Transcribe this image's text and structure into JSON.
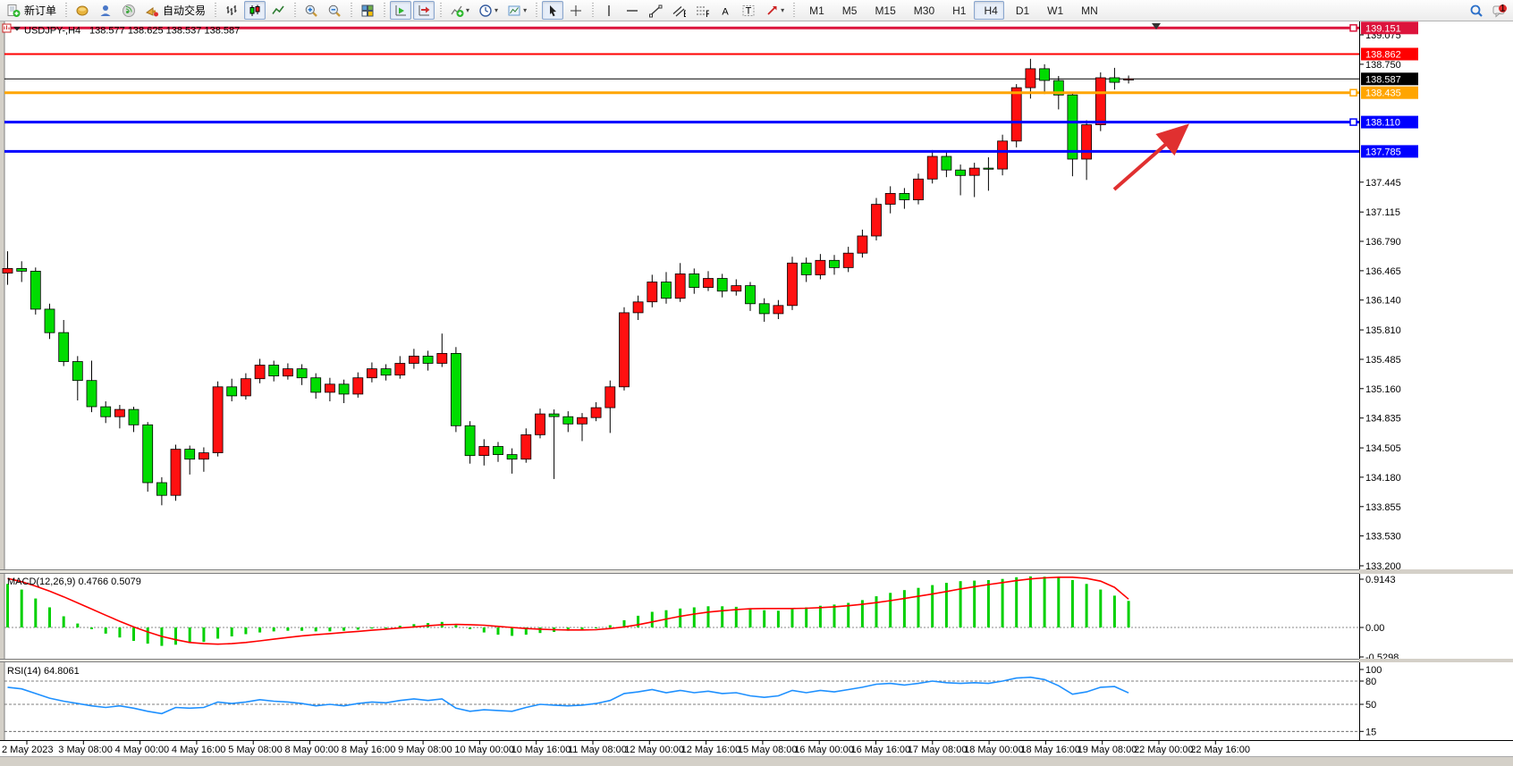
{
  "window": {
    "background": "#d4d0c8"
  },
  "toolbar": {
    "items": [
      {
        "name": "new-order-button",
        "icon": "new-order",
        "label": "新订单"
      },
      {
        "sep": true
      },
      {
        "name": "deposit-button",
        "icon": "coin"
      },
      {
        "name": "support-button",
        "icon": "person"
      },
      {
        "name": "signal-button",
        "icon": "signal"
      },
      {
        "name": "autotrading-button",
        "icon": "megaphone",
        "label": "自动交易"
      },
      {
        "sep": true
      },
      {
        "name": "bar-chart-button",
        "icon": "bars"
      },
      {
        "name": "candle-chart-button",
        "icon": "candles",
        "pressed": true
      },
      {
        "name": "line-chart-button",
        "icon": "line"
      },
      {
        "sep": true
      },
      {
        "name": "zoom-in-button",
        "icon": "zoom-in"
      },
      {
        "name": "zoom-out-button",
        "icon": "zoom-out"
      },
      {
        "sep": true
      },
      {
        "name": "tile-windows-button",
        "icon": "tile"
      },
      {
        "sep": true
      },
      {
        "name": "auto-scroll-button",
        "icon": "autoscroll",
        "pressed": true
      },
      {
        "name": "chart-shift-button",
        "icon": "shift",
        "pressed": true
      },
      {
        "sep": true
      },
      {
        "name": "indicators-button",
        "icon": "indicators",
        "caret": true
      },
      {
        "name": "periods-button",
        "icon": "clock",
        "caret": true
      },
      {
        "name": "templates-button",
        "icon": "template",
        "caret": true
      },
      {
        "sep": true
      },
      {
        "name": "cursor-button",
        "icon": "cursor",
        "pressed": true
      },
      {
        "name": "crosshair-button",
        "icon": "crosshair"
      },
      {
        "sep": true
      },
      {
        "name": "vertical-line-button",
        "icon": "vline"
      },
      {
        "name": "horizontal-line-button",
        "icon": "hline"
      },
      {
        "name": "trendline-button",
        "icon": "trend"
      },
      {
        "name": "channel-button",
        "icon": "channel"
      },
      {
        "name": "fibonacci-button",
        "icon": "fibo"
      },
      {
        "name": "text-button",
        "icon": "text-a"
      },
      {
        "name": "text-label-button",
        "icon": "text-t"
      },
      {
        "name": "arrows-button",
        "icon": "arrows",
        "caret": true
      },
      {
        "sep": true
      },
      {
        "name": "timeframe-m1",
        "label": "M1",
        "tf": true
      },
      {
        "name": "timeframe-m5",
        "label": "M5",
        "tf": true
      },
      {
        "name": "timeframe-m15",
        "label": "M15",
        "tf": true
      },
      {
        "name": "timeframe-m30",
        "label": "M30",
        "tf": true
      },
      {
        "name": "timeframe-h1",
        "label": "H1",
        "tf": true
      },
      {
        "name": "timeframe-h4",
        "label": "H4",
        "tf": true,
        "pressed": true
      },
      {
        "name": "timeframe-d1",
        "label": "D1",
        "tf": true
      },
      {
        "name": "timeframe-w1",
        "label": "W1",
        "tf": true
      },
      {
        "name": "timeframe-mn",
        "label": "MN",
        "tf": true
      },
      {
        "spacer": true
      },
      {
        "name": "search-button",
        "icon": "search"
      },
      {
        "name": "chat-button",
        "icon": "chat",
        "badge": "1"
      }
    ]
  },
  "chart_data": {
    "type": "candlestick",
    "symbol": "USDJPY-",
    "period": "H4",
    "title": "USDJPY-,H4",
    "ohlc_text": "138.577 138.625 138.537 138.587",
    "current": {
      "open": 138.577,
      "high": 138.625,
      "low": 138.537,
      "close": 138.587
    },
    "bull_color": "#ff1010",
    "bear_color": "#00dc00",
    "y_ticks": [
      "139.075",
      "138.750",
      "137.445",
      "137.115",
      "136.790",
      "136.465",
      "136.140",
      "135.810",
      "135.485",
      "135.160",
      "134.835",
      "134.505",
      "134.180",
      "133.855",
      "133.530",
      "133.200"
    ],
    "x_labels": [
      "2 May 2023",
      "3 May 08:00",
      "4 May 00:00",
      "4 May 16:00",
      "5 May 08:00",
      "8 May 00:00",
      "8 May 16:00",
      "9 May 08:00",
      "10 May 00:00",
      "10 May 16:00",
      "11 May 08:00",
      "12 May 00:00",
      "12 May 16:00",
      "15 May 08:00",
      "16 May 00:00",
      "16 May 16:00",
      "17 May 08:00",
      "18 May 00:00",
      "18 May 16:00",
      "19 May 08:00",
      "22 May 00:00",
      "22 May 16:00"
    ],
    "levels": [
      {
        "label": "139.151",
        "value": 139.151,
        "color": "#dc143c",
        "width": 3,
        "handle": true
      },
      {
        "label": "138.862",
        "value": 138.862,
        "color": "#ff0000",
        "width": 2,
        "handle": false
      },
      {
        "label": "138.435",
        "value": 138.435,
        "color": "#ffa500",
        "width": 3,
        "handle": true
      },
      {
        "label": "138.110",
        "value": 138.11,
        "color": "#0000ff",
        "width": 3,
        "handle": true
      },
      {
        "label": "137.785",
        "value": 137.785,
        "color": "#0000ff",
        "width": 3,
        "handle": false
      }
    ],
    "bid": {
      "label": "138.587",
      "value": 138.587,
      "color": "#000000"
    },
    "candles": [
      [
        136.44,
        136.68,
        136.31,
        136.49
      ],
      [
        136.49,
        136.57,
        136.34,
        136.46
      ],
      [
        136.46,
        136.5,
        135.98,
        136.04
      ],
      [
        136.04,
        136.1,
        135.71,
        135.78
      ],
      [
        135.78,
        135.92,
        135.41,
        135.46
      ],
      [
        135.46,
        135.52,
        135.03,
        135.25
      ],
      [
        135.25,
        135.47,
        134.9,
        134.96
      ],
      [
        134.96,
        135.02,
        134.78,
        134.85
      ],
      [
        134.85,
        134.98,
        134.72,
        134.93
      ],
      [
        134.93,
        134.96,
        134.68,
        134.76
      ],
      [
        134.76,
        134.79,
        134.02,
        134.12
      ],
      [
        134.12,
        134.18,
        133.87,
        133.98
      ],
      [
        133.98,
        134.54,
        133.92,
        134.49
      ],
      [
        134.49,
        134.53,
        134.21,
        134.38
      ],
      [
        134.38,
        134.51,
        134.24,
        134.45
      ],
      [
        134.45,
        135.24,
        134.41,
        135.18
      ],
      [
        135.18,
        135.27,
        135.02,
        135.08
      ],
      [
        135.08,
        135.33,
        135.04,
        135.27
      ],
      [
        135.27,
        135.49,
        135.22,
        135.42
      ],
      [
        135.42,
        135.47,
        135.24,
        135.3
      ],
      [
        135.3,
        135.44,
        135.26,
        135.38
      ],
      [
        135.38,
        135.43,
        135.2,
        135.28
      ],
      [
        135.28,
        135.33,
        135.05,
        135.12
      ],
      [
        135.12,
        135.28,
        135.02,
        135.21
      ],
      [
        135.21,
        135.26,
        135.0,
        135.1
      ],
      [
        135.1,
        135.34,
        135.06,
        135.28
      ],
      [
        135.28,
        135.45,
        135.23,
        135.38
      ],
      [
        135.38,
        135.43,
        135.25,
        135.31
      ],
      [
        135.31,
        135.52,
        135.27,
        135.44
      ],
      [
        135.44,
        135.6,
        135.38,
        135.52
      ],
      [
        135.52,
        135.58,
        135.36,
        135.44
      ],
      [
        135.44,
        135.77,
        135.4,
        135.55
      ],
      [
        135.55,
        135.62,
        134.68,
        134.75
      ],
      [
        134.75,
        134.8,
        134.33,
        134.42
      ],
      [
        134.42,
        134.6,
        134.31,
        134.52
      ],
      [
        134.52,
        134.57,
        134.35,
        134.43
      ],
      [
        134.43,
        134.5,
        134.22,
        134.38
      ],
      [
        134.38,
        134.72,
        134.34,
        134.65
      ],
      [
        134.65,
        134.94,
        134.61,
        134.88
      ],
      [
        134.88,
        134.93,
        134.16,
        134.85
      ],
      [
        134.85,
        134.91,
        134.68,
        134.77
      ],
      [
        134.77,
        134.89,
        134.58,
        134.84
      ],
      [
        134.84,
        135.01,
        134.8,
        134.95
      ],
      [
        134.95,
        135.25,
        134.67,
        135.18
      ],
      [
        135.18,
        136.06,
        135.14,
        136.0
      ],
      [
        136.0,
        136.19,
        135.92,
        136.12
      ],
      [
        136.12,
        136.42,
        136.06,
        136.34
      ],
      [
        136.34,
        136.45,
        136.1,
        136.16
      ],
      [
        136.16,
        136.55,
        136.12,
        136.43
      ],
      [
        136.43,
        136.49,
        136.21,
        136.28
      ],
      [
        136.28,
        136.46,
        136.24,
        136.38
      ],
      [
        136.38,
        136.43,
        136.17,
        136.24
      ],
      [
        136.24,
        136.37,
        136.19,
        136.3
      ],
      [
        136.3,
        136.34,
        136.02,
        136.1
      ],
      [
        136.1,
        136.16,
        135.9,
        135.99
      ],
      [
        135.99,
        136.14,
        135.93,
        136.08
      ],
      [
        136.08,
        136.62,
        136.03,
        136.55
      ],
      [
        136.55,
        136.61,
        136.34,
        136.42
      ],
      [
        136.42,
        136.65,
        136.37,
        136.58
      ],
      [
        136.58,
        136.64,
        136.42,
        136.5
      ],
      [
        136.5,
        136.73,
        136.45,
        136.66
      ],
      [
        136.66,
        136.92,
        136.61,
        136.85
      ],
      [
        136.85,
        137.27,
        136.8,
        137.2
      ],
      [
        137.2,
        137.4,
        137.1,
        137.32
      ],
      [
        137.32,
        137.38,
        137.15,
        137.25
      ],
      [
        137.25,
        137.54,
        137.2,
        137.48
      ],
      [
        137.48,
        137.8,
        137.43,
        137.73
      ],
      [
        137.73,
        137.79,
        137.5,
        137.58
      ],
      [
        137.58,
        137.64,
        137.3,
        137.52
      ],
      [
        137.52,
        137.66,
        137.28,
        137.6
      ],
      [
        137.6,
        137.72,
        137.35,
        137.59
      ],
      [
        137.59,
        137.97,
        137.52,
        137.9
      ],
      [
        137.9,
        138.53,
        137.83,
        138.49
      ],
      [
        138.49,
        138.81,
        138.37,
        138.7
      ],
      [
        138.7,
        138.75,
        138.42,
        138.57
      ],
      [
        138.57,
        138.62,
        138.25,
        138.41
      ],
      [
        138.41,
        138.44,
        137.51,
        137.7
      ],
      [
        137.7,
        138.13,
        137.47,
        138.08
      ],
      [
        138.08,
        138.66,
        138.01,
        138.6
      ],
      [
        138.6,
        138.71,
        138.47,
        138.55
      ],
      [
        138.577,
        138.625,
        138.537,
        138.587
      ]
    ],
    "macd": {
      "label": "MACD(12,26,9) 0.4766 0.5079",
      "name": "MACD(12,26,9)",
      "value_main": 0.4766,
      "value_signal": 0.5079,
      "axis": [
        "0.9143",
        "0.00",
        "-0.5298"
      ],
      "hist_color": "#00d000",
      "signal_color": "#ff0000",
      "histogram": [
        0.78,
        0.68,
        0.52,
        0.36,
        0.2,
        0.07,
        -0.03,
        -0.11,
        -0.18,
        -0.24,
        -0.29,
        -0.33,
        -0.31,
        -0.28,
        -0.26,
        -0.2,
        -0.16,
        -0.12,
        -0.09,
        -0.07,
        -0.06,
        -0.06,
        -0.07,
        -0.07,
        -0.06,
        -0.04,
        -0.02,
        0.0,
        0.03,
        0.06,
        0.08,
        0.1,
        0.04,
        -0.03,
        -0.09,
        -0.13,
        -0.15,
        -0.13,
        -0.1,
        -0.08,
        -0.06,
        -0.04,
        -0.01,
        0.04,
        0.13,
        0.21,
        0.28,
        0.31,
        0.34,
        0.36,
        0.38,
        0.38,
        0.37,
        0.34,
        0.31,
        0.3,
        0.33,
        0.36,
        0.39,
        0.41,
        0.44,
        0.49,
        0.56,
        0.62,
        0.67,
        0.71,
        0.76,
        0.8,
        0.83,
        0.84,
        0.85,
        0.87,
        0.9,
        0.9143,
        0.91,
        0.89,
        0.85,
        0.78,
        0.68,
        0.57,
        0.4766
      ],
      "signal": [
        0.88,
        0.82,
        0.74,
        0.65,
        0.55,
        0.44,
        0.33,
        0.22,
        0.11,
        0.01,
        -0.08,
        -0.16,
        -0.22,
        -0.27,
        -0.29,
        -0.3,
        -0.29,
        -0.27,
        -0.24,
        -0.21,
        -0.18,
        -0.15,
        -0.13,
        -0.11,
        -0.09,
        -0.07,
        -0.05,
        -0.03,
        -0.01,
        0.01,
        0.03,
        0.05,
        0.055,
        0.05,
        0.04,
        0.02,
        0.0,
        -0.02,
        -0.03,
        -0.04,
        -0.045,
        -0.045,
        -0.04,
        -0.02,
        0.01,
        0.05,
        0.1,
        0.15,
        0.2,
        0.24,
        0.275,
        0.3,
        0.32,
        0.335,
        0.34,
        0.34,
        0.34,
        0.345,
        0.355,
        0.37,
        0.39,
        0.415,
        0.445,
        0.48,
        0.52,
        0.56,
        0.6,
        0.645,
        0.69,
        0.73,
        0.77,
        0.805,
        0.84,
        0.87,
        0.89,
        0.9,
        0.9,
        0.88,
        0.83,
        0.72,
        0.5079
      ]
    },
    "rsi": {
      "label": "RSI(14) 64.8061",
      "name": "RSI(14)",
      "value": 64.8061,
      "axis": [
        "100",
        "80",
        "50",
        "15"
      ],
      "grid_levels": [
        80,
        50,
        15
      ],
      "color": "#1e90ff",
      "values": [
        72,
        70,
        64,
        58,
        54,
        51,
        48,
        46,
        48,
        45,
        41,
        38,
        46,
        45,
        46,
        53,
        51,
        53,
        56,
        54,
        53,
        51,
        48,
        50,
        48,
        51,
        53,
        52,
        55,
        57,
        55,
        57,
        45,
        41,
        43,
        42,
        41,
        46,
        50,
        49,
        48,
        49,
        51,
        55,
        64,
        66,
        69,
        65,
        68,
        65,
        67,
        64,
        65,
        61,
        59,
        61,
        68,
        65,
        68,
        66,
        69,
        72,
        76,
        77,
        75,
        77,
        80,
        78,
        77,
        78,
        77,
        80,
        84,
        85,
        82,
        74,
        63,
        66,
        72,
        73,
        64.8
      ]
    },
    "annotation": {
      "type": "arrow",
      "color": "#e03030",
      "from": [
        1246,
        212
      ],
      "to": [
        1327,
        141
      ]
    }
  }
}
